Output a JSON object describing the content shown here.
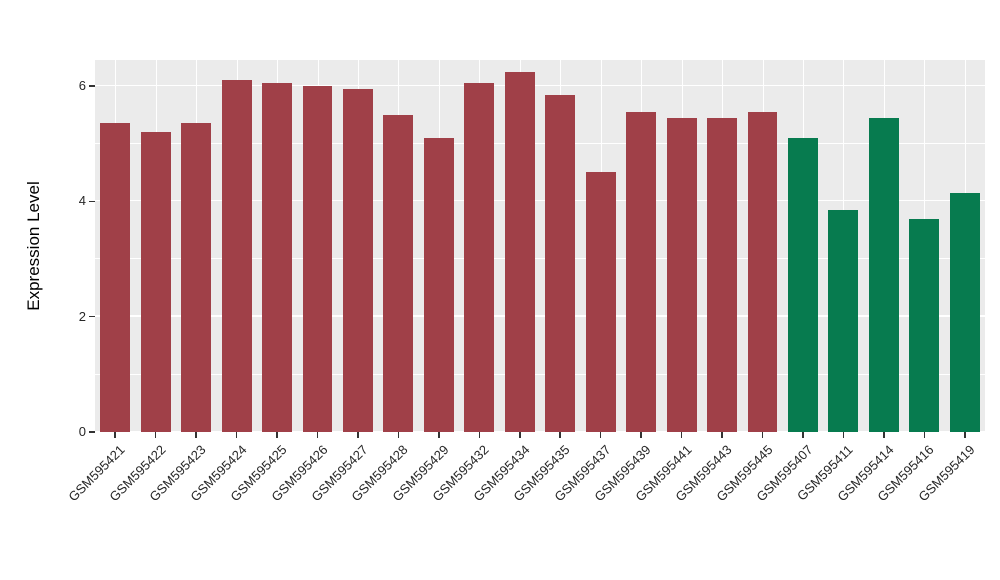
{
  "chart_data": {
    "type": "bar",
    "title": "",
    "xlabel": "",
    "ylabel": "Expression Level",
    "ylim": [
      0,
      6.45
    ],
    "yticks": [
      0,
      2,
      4,
      6
    ],
    "yticks_minor": [
      1,
      3,
      5
    ],
    "grid": true,
    "legend": false,
    "plot_bg": "#EBEBEB",
    "grid_color": "#FFFFFF",
    "colors": {
      "red": "#A04048",
      "green": "#077B4F"
    },
    "categories": [
      "GSM595421",
      "GSM595422",
      "GSM595423",
      "GSM595424",
      "GSM595425",
      "GSM595426",
      "GSM595427",
      "GSM595428",
      "GSM595429",
      "GSM595432",
      "GSM595434",
      "GSM595435",
      "GSM595437",
      "GSM595439",
      "GSM595441",
      "GSM595443",
      "GSM595445",
      "GSM595407",
      "GSM595411",
      "GSM595414",
      "GSM595416",
      "GSM595419"
    ],
    "values": [
      5.35,
      5.2,
      5.35,
      6.1,
      6.05,
      6.0,
      5.95,
      5.5,
      5.1,
      6.05,
      6.25,
      5.85,
      4.5,
      5.55,
      5.45,
      5.45,
      5.55,
      5.1,
      3.85,
      5.45,
      3.7,
      4.15
    ],
    "groups": [
      "red",
      "red",
      "red",
      "red",
      "red",
      "red",
      "red",
      "red",
      "red",
      "red",
      "red",
      "red",
      "red",
      "red",
      "red",
      "red",
      "red",
      "green",
      "green",
      "green",
      "green",
      "green"
    ]
  }
}
